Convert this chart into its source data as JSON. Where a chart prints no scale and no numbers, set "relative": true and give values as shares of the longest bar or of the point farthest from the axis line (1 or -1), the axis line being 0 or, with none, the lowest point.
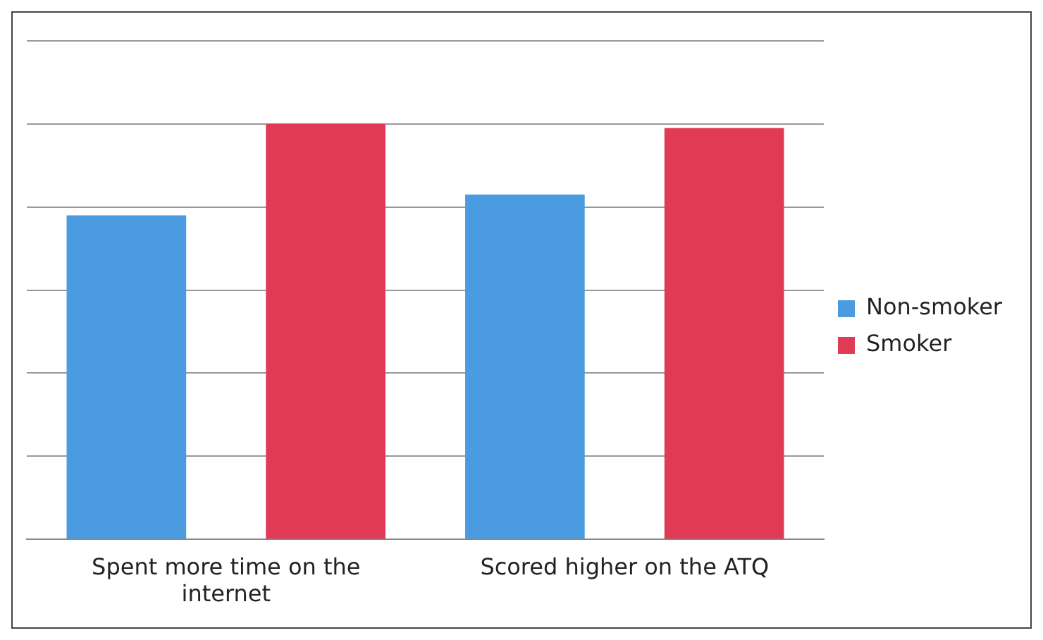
{
  "chart_data": {
    "type": "bar",
    "relative": true,
    "categories": [
      "Spent more time on the internet",
      "Scored higher on the ATQ"
    ],
    "series": [
      {
        "name": "Non-smoker",
        "color": "#4a9be0",
        "values": [
          0.78,
          0.83
        ]
      },
      {
        "name": "Smoker",
        "color": "#e03a55",
        "values": [
          1,
          0.99
        ]
      }
    ],
    "grid": "y",
    "legend": "right"
  }
}
